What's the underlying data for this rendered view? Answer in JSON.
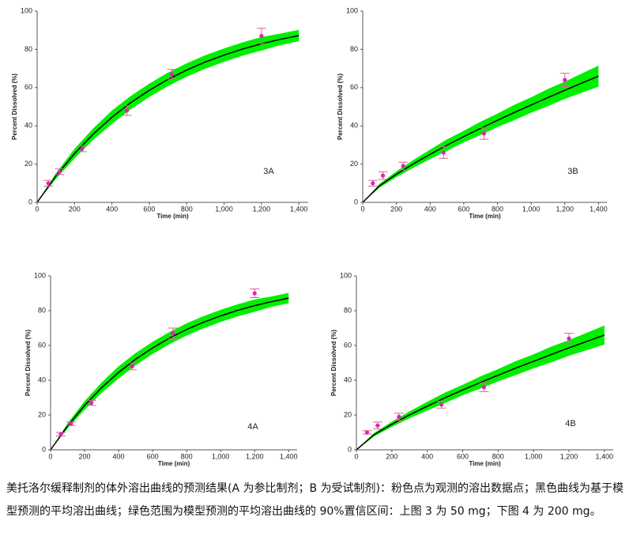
{
  "chart_data": [
    {
      "type": "scatter",
      "panel_label": "3A",
      "xlabel": "Time (min)",
      "ylabel": "Percent Dissolved (%)",
      "xlim": [
        0,
        1450
      ],
      "ylim": [
        0,
        100
      ],
      "xticks": [
        0,
        200,
        400,
        600,
        800,
        {
          "value": 1000,
          "label": "1,000"
        },
        {
          "value": 1200,
          "label": "1,200"
        },
        {
          "value": 1400,
          "label": "1,400"
        }
      ],
      "yticks": [
        0,
        20,
        40,
        60,
        80,
        100
      ],
      "observed": {
        "x": [
          60,
          120,
          240,
          480,
          720,
          1200
        ],
        "values": [
          10,
          16,
          28,
          48,
          67,
          87
        ],
        "errors": [
          1.5,
          1.5,
          1.5,
          2.5,
          2.5,
          4
        ],
        "color": "#e020c0",
        "error_color": "#e0608a"
      },
      "curve": {
        "x": [
          0,
          100,
          200,
          300,
          400,
          500,
          600,
          700,
          800,
          900,
          1000,
          1100,
          1200,
          1300,
          1400
        ],
        "values": [
          0,
          13.7,
          25.5,
          35.7,
          44.5,
          52.1,
          58.6,
          64.3,
          69.2,
          73.4,
          77.0,
          80.2,
          82.9,
          85.2,
          87.2
        ],
        "lower": [
          0,
          12.2,
          23,
          32.7,
          41,
          48.6,
          55.1,
          60.8,
          65.7,
          69.9,
          73.5,
          76.7,
          79.4,
          82.2,
          84.2
        ],
        "upper": [
          0,
          15.2,
          28,
          38.7,
          48,
          55.6,
          62.1,
          67.8,
          72.7,
          76.9,
          80.5,
          83.7,
          86.4,
          88.2,
          90.2
        ],
        "color": "#000000",
        "band_color": "#00ee00"
      }
    },
    {
      "type": "scatter",
      "panel_label": "3B",
      "xlabel": "Time (min)",
      "ylabel": "Percent Dissolved (%)",
      "xlim": [
        0,
        1450
      ],
      "ylim": [
        0,
        100
      ],
      "xticks": [
        0,
        200,
        400,
        600,
        800,
        {
          "value": 1000,
          "label": "1,000"
        },
        {
          "value": 1200,
          "label": "1,200"
        },
        {
          "value": 1400,
          "label": "1,400"
        }
      ],
      "yticks": [
        0,
        20,
        40,
        60,
        80,
        100
      ],
      "observed": {
        "x": [
          60,
          120,
          240,
          480,
          720,
          1200
        ],
        "values": [
          10,
          14,
          19,
          26,
          36,
          64
        ],
        "errors": [
          1.5,
          2,
          2,
          3,
          3,
          3.5
        ],
        "color": "#e020c0",
        "error_color": "#e0608a"
      },
      "curve": {
        "x": [
          0,
          100,
          200,
          300,
          400,
          500,
          600,
          700,
          800,
          900,
          1000,
          1100,
          1200,
          1300,
          1400
        ],
        "values": [
          0,
          8.7,
          14.7,
          20.1,
          25.1,
          29.9,
          34.4,
          38.7,
          42.9,
          47.0,
          50.9,
          54.8,
          58.6,
          62.3,
          66.0
        ],
        "lower": [
          0,
          7.7,
          13.2,
          18.1,
          22.6,
          26.9,
          31.4,
          35.2,
          39.4,
          43,
          46.9,
          50.3,
          54.1,
          57.3,
          60.5
        ],
        "upper": [
          0,
          9.7,
          16.2,
          22.1,
          27.6,
          32.9,
          37.4,
          42.2,
          46.4,
          51,
          54.9,
          59.3,
          63.1,
          67.3,
          71.5
        ],
        "color": "#000000",
        "band_color": "#00ee00"
      }
    },
    {
      "type": "scatter",
      "panel_label": "4A",
      "xlabel": "Time (min)",
      "ylabel": "Percent Dissolved (%)",
      "xlim": [
        0,
        1450
      ],
      "ylim": [
        0,
        100
      ],
      "xticks": [
        0,
        200,
        400,
        600,
        800,
        {
          "value": 1000,
          "label": "1,000"
        },
        {
          "value": 1200,
          "label": "1,200"
        },
        {
          "value": 1400,
          "label": "1,400"
        }
      ],
      "yticks": [
        0,
        20,
        40,
        60,
        80,
        100
      ],
      "observed": {
        "x": [
          60,
          120,
          240,
          480,
          720,
          1200
        ],
        "values": [
          9,
          15,
          27,
          48,
          67,
          90
        ],
        "errors": [
          1,
          1,
          1.5,
          2,
          3,
          2.5
        ],
        "color": "#e020c0",
        "error_color": "#e0608a"
      },
      "curve": {
        "x": [
          0,
          100,
          200,
          300,
          400,
          500,
          600,
          700,
          800,
          900,
          1000,
          1100,
          1200,
          1300,
          1400
        ],
        "values": [
          0,
          13.7,
          25.5,
          35.7,
          44.5,
          52.1,
          58.6,
          64.3,
          69.2,
          73.4,
          77.0,
          80.2,
          82.9,
          85.2,
          87.2
        ],
        "lower": [
          0,
          12.2,
          23,
          32.7,
          41,
          48.6,
          55.1,
          60.8,
          65.7,
          69.9,
          73.5,
          76.7,
          79.4,
          82.2,
          84.2
        ],
        "upper": [
          0,
          15.2,
          28,
          38.7,
          48,
          55.6,
          62.1,
          67.8,
          72.7,
          76.9,
          80.5,
          83.7,
          86.4,
          88.2,
          90.2
        ],
        "color": "#000000",
        "band_color": "#00ee00"
      }
    },
    {
      "type": "scatter",
      "panel_label": "4B",
      "xlabel": "Time (min)",
      "ylabel": "Percent Dissolved (%)",
      "xlim": [
        0,
        1450
      ],
      "ylim": [
        0,
        100
      ],
      "xticks": [
        0,
        200,
        400,
        600,
        800,
        {
          "value": 1000,
          "label": "1,000"
        },
        {
          "value": 1200,
          "label": "1,200"
        },
        {
          "value": 1400,
          "label": "1,400"
        }
      ],
      "yticks": [
        0,
        20,
        40,
        60,
        80,
        100
      ],
      "observed": {
        "x": [
          60,
          120,
          240,
          480,
          720,
          1200
        ],
        "values": [
          10,
          14,
          19,
          26,
          36,
          64
        ],
        "errors": [
          1,
          2,
          2,
          2,
          2.5,
          3
        ],
        "color": "#e020c0",
        "error_color": "#e0608a"
      },
      "curve": {
        "x": [
          0,
          100,
          200,
          300,
          400,
          500,
          600,
          700,
          800,
          900,
          1000,
          1100,
          1200,
          1300,
          1400
        ],
        "values": [
          0,
          8.7,
          14.7,
          20.1,
          25.1,
          29.9,
          34.4,
          38.7,
          42.9,
          47.0,
          50.9,
          54.8,
          58.6,
          62.3,
          66.0
        ],
        "lower": [
          0,
          7.7,
          13.2,
          18.1,
          22.6,
          26.9,
          31.4,
          35.2,
          39.4,
          43,
          46.9,
          50.3,
          54.1,
          57.3,
          60.5
        ],
        "upper": [
          0,
          9.7,
          16.2,
          22.1,
          27.6,
          32.9,
          37.4,
          42.2,
          46.4,
          51,
          54.9,
          59.3,
          63.1,
          67.3,
          71.5
        ],
        "color": "#000000",
        "band_color": "#00ee00"
      }
    }
  ],
  "caption": "美托洛尔缓释制剂的体外溶出曲线的预测结果(A 为参比制剂；B 为受试制剂)：粉色点为观测的溶出数据点；黑色曲线为基于模型预测的平均溶出曲线；绿色范围为模型预测的平均溶出曲线的 90%置信区间：上图 3 为 50 mg；下图 4 为 200 mg。"
}
